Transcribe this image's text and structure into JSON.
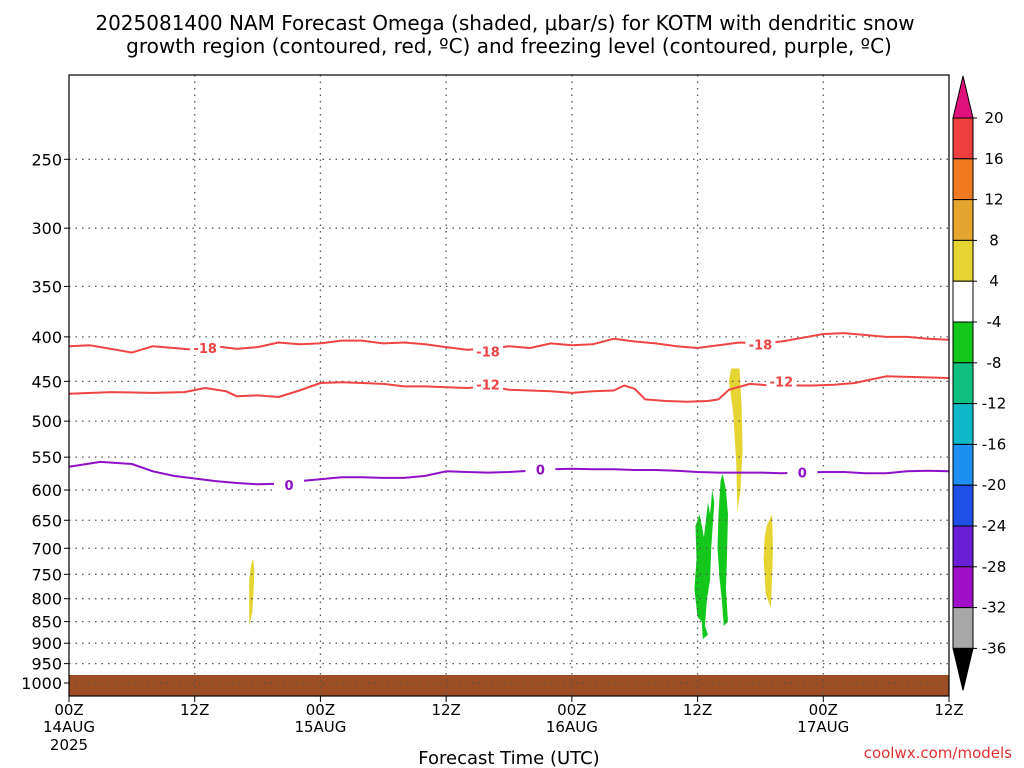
{
  "chart_data": {
    "type": "time-height cross-section",
    "title_line1": "2025081400 NAM Forecast Omega (shaded, μbar/s) for KOTM with dendritic snow",
    "title_line2": "growth region (contoured, red, ºC) and freezing level (contoured, purple, ºC)",
    "xlabel": "Forecast Time (UTC)",
    "credit": "coolwx.com/models",
    "x_range_hours": [
      0,
      84
    ],
    "y_scale": "log-pressure",
    "y_range_hpa": [
      1035,
      200
    ],
    "grid": true,
    "x_ticks": [
      {
        "h": 0,
        "top": "00Z",
        "mid": "14AUG",
        "bot": "2025"
      },
      {
        "h": 12,
        "top": "12Z",
        "mid": "",
        "bot": ""
      },
      {
        "h": 24,
        "top": "00Z",
        "mid": "15AUG",
        "bot": ""
      },
      {
        "h": 36,
        "top": "12Z",
        "mid": "",
        "bot": ""
      },
      {
        "h": 48,
        "top": "00Z",
        "mid": "16AUG",
        "bot": ""
      },
      {
        "h": 60,
        "top": "12Z",
        "mid": "",
        "bot": ""
      },
      {
        "h": 72,
        "top": "00Z",
        "mid": "17AUG",
        "bot": ""
      },
      {
        "h": 84,
        "top": "12Z",
        "mid": "",
        "bot": ""
      }
    ],
    "y_ticks": [
      250,
      300,
      350,
      400,
      450,
      500,
      550,
      600,
      650,
      700,
      750,
      800,
      850,
      900,
      950,
      1000
    ],
    "colorbar": {
      "labels": [
        "20",
        "16",
        "12",
        "8",
        "4",
        "-4",
        "-8",
        "-12",
        "-16",
        "-20",
        "-24",
        "-28",
        "-32",
        "-36"
      ],
      "colors": [
        "#ee3e3e",
        "#f07a22",
        "#e6a52e",
        "#e6d432",
        "#ffffff",
        "#13c81a",
        "#0fbf7f",
        "#0fb8c6",
        "#1e8ff0",
        "#1f4fe6",
        "#6a1fd6",
        "#a010c8",
        "#a8a8a8"
      ],
      "top_arrow_color": "#e0107a",
      "bottom_arrow_color": "#000000"
    },
    "contours": [
      {
        "name": "-18",
        "color": "#ee4444",
        "width": 2,
        "points": [
          [
            0,
            410
          ],
          [
            2,
            409
          ],
          [
            4,
            413
          ],
          [
            6,
            417
          ],
          [
            8,
            410
          ],
          [
            10,
            412
          ],
          [
            12,
            414
          ],
          [
            14,
            410
          ],
          [
            16,
            413
          ],
          [
            18,
            411
          ],
          [
            20,
            406
          ],
          [
            22,
            408
          ],
          [
            24,
            407
          ],
          [
            26,
            404
          ],
          [
            28,
            404
          ],
          [
            30,
            407
          ],
          [
            32,
            406
          ],
          [
            34,
            408
          ],
          [
            36,
            411
          ],
          [
            38,
            414
          ],
          [
            40,
            413
          ],
          [
            42,
            410
          ],
          [
            44,
            412
          ],
          [
            46,
            407
          ],
          [
            48,
            409
          ],
          [
            50,
            408
          ],
          [
            52,
            402
          ],
          [
            54,
            405
          ],
          [
            56,
            407
          ],
          [
            58,
            410
          ],
          [
            60,
            412
          ],
          [
            62,
            409
          ],
          [
            64,
            406
          ],
          [
            66,
            407
          ],
          [
            68,
            405
          ],
          [
            70,
            401
          ],
          [
            72,
            397
          ],
          [
            74,
            396
          ],
          [
            76,
            398
          ],
          [
            78,
            400
          ],
          [
            80,
            400
          ],
          [
            82,
            402
          ],
          [
            84,
            403
          ]
        ],
        "labels": [
          [
            13,
            412
          ],
          [
            40,
            416
          ],
          [
            66,
            408
          ]
        ]
      },
      {
        "name": "-12",
        "color": "#ee4444",
        "width": 2,
        "points": [
          [
            0,
            465
          ],
          [
            4,
            463
          ],
          [
            8,
            464
          ],
          [
            11,
            463
          ],
          [
            13,
            458
          ],
          [
            15,
            462
          ],
          [
            16,
            468
          ],
          [
            18,
            467
          ],
          [
            20,
            469
          ],
          [
            22,
            461
          ],
          [
            24,
            452
          ],
          [
            26,
            451
          ],
          [
            28,
            452
          ],
          [
            30,
            453
          ],
          [
            32,
            456
          ],
          [
            34,
            456
          ],
          [
            36,
            457
          ],
          [
            38,
            458
          ],
          [
            40,
            456
          ],
          [
            42,
            460
          ],
          [
            44,
            461
          ],
          [
            46,
            462
          ],
          [
            48,
            464
          ],
          [
            50,
            462
          ],
          [
            52,
            461
          ],
          [
            53,
            455
          ],
          [
            54,
            459
          ],
          [
            55,
            472
          ],
          [
            57,
            474
          ],
          [
            59,
            475
          ],
          [
            61,
            474
          ],
          [
            62,
            472
          ],
          [
            63,
            460
          ],
          [
            65,
            453
          ],
          [
            67,
            455
          ],
          [
            69,
            455
          ],
          [
            71,
            455
          ],
          [
            73,
            454
          ],
          [
            75,
            452
          ],
          [
            78,
            444
          ],
          [
            81,
            445
          ],
          [
            84,
            446
          ]
        ],
        "labels": [
          [
            40,
            454
          ],
          [
            68,
            450
          ]
        ]
      },
      {
        "name": "0",
        "color": "#8f10c8",
        "width": 2,
        "points": [
          [
            0,
            564
          ],
          [
            3,
            557
          ],
          [
            6,
            560
          ],
          [
            8,
            571
          ],
          [
            10,
            578
          ],
          [
            12,
            582
          ],
          [
            14,
            586
          ],
          [
            16,
            589
          ],
          [
            18,
            591
          ],
          [
            20,
            590
          ],
          [
            22,
            586
          ],
          [
            24,
            583
          ],
          [
            26,
            580
          ],
          [
            28,
            580
          ],
          [
            30,
            581
          ],
          [
            32,
            581
          ],
          [
            34,
            578
          ],
          [
            36,
            571
          ],
          [
            38,
            572
          ],
          [
            40,
            573
          ],
          [
            42,
            572
          ],
          [
            44,
            570
          ],
          [
            46,
            568
          ],
          [
            48,
            567
          ],
          [
            50,
            568
          ],
          [
            52,
            568
          ],
          [
            54,
            569
          ],
          [
            56,
            569
          ],
          [
            58,
            570
          ],
          [
            60,
            572
          ],
          [
            62,
            573
          ],
          [
            64,
            573
          ],
          [
            66,
            573
          ],
          [
            68,
            574
          ],
          [
            70,
            573
          ],
          [
            72,
            572
          ],
          [
            74,
            572
          ],
          [
            76,
            574
          ],
          [
            78,
            574
          ],
          [
            80,
            571
          ],
          [
            82,
            570
          ],
          [
            84,
            571
          ]
        ],
        "labels": [
          [
            21,
            592
          ],
          [
            45,
            568
          ],
          [
            70,
            573
          ]
        ]
      }
    ],
    "shaded_regions": [
      {
        "value_range": "4 to 8",
        "color": "#e6d432",
        "points": [
          [
            17.4,
            730
          ],
          [
            17.6,
            720
          ],
          [
            17.7,
            745
          ],
          [
            17.6,
            790
          ],
          [
            17.5,
            830
          ],
          [
            17.2,
            860
          ],
          [
            17.2,
            810
          ],
          [
            17.2,
            760
          ]
        ]
      },
      {
        "value_range": "4 to 8",
        "color": "#e6d432",
        "points": [
          [
            63.2,
            435
          ],
          [
            64.0,
            435
          ],
          [
            64.2,
            480
          ],
          [
            64.3,
            540
          ],
          [
            64.1,
            600
          ],
          [
            63.8,
            635
          ],
          [
            63.7,
            560
          ],
          [
            63.4,
            490
          ],
          [
            63.0,
            450
          ]
        ]
      },
      {
        "value_range": "4 to 8",
        "color": "#e6d432",
        "points": [
          [
            66.6,
            660
          ],
          [
            67.1,
            640
          ],
          [
            67.2,
            700
          ],
          [
            67.1,
            760
          ],
          [
            67.0,
            820
          ],
          [
            66.5,
            790
          ],
          [
            66.3,
            720
          ],
          [
            66.4,
            680
          ]
        ]
      },
      {
        "value_range": "-4 to -8",
        "color": "#13c81a",
        "points": [
          [
            60.4,
            850
          ],
          [
            60.0,
            840
          ],
          [
            59.7,
            780
          ],
          [
            59.9,
            720
          ],
          [
            59.8,
            660
          ],
          [
            60.2,
            640
          ],
          [
            60.6,
            680
          ],
          [
            61.0,
            620
          ],
          [
            61.2,
            640
          ],
          [
            61.4,
            600
          ],
          [
            61.6,
            620
          ],
          [
            61.3,
            700
          ],
          [
            61.2,
            760
          ],
          [
            60.9,
            800
          ],
          [
            60.7,
            860
          ],
          [
            61.0,
            880
          ],
          [
            60.5,
            890
          ]
        ]
      },
      {
        "value_range": "-4 to -8",
        "color": "#13c81a",
        "points": [
          [
            62.0,
            640
          ],
          [
            62.2,
            585
          ],
          [
            62.4,
            575
          ],
          [
            62.7,
            600
          ],
          [
            62.9,
            640
          ],
          [
            62.8,
            720
          ],
          [
            62.7,
            780
          ],
          [
            62.9,
            850
          ],
          [
            62.5,
            860
          ],
          [
            62.3,
            800
          ],
          [
            62.1,
            760
          ],
          [
            61.9,
            700
          ]
        ]
      }
    ],
    "ground": {
      "color": "#9e4e24",
      "top_hpa": 1000
    }
  }
}
